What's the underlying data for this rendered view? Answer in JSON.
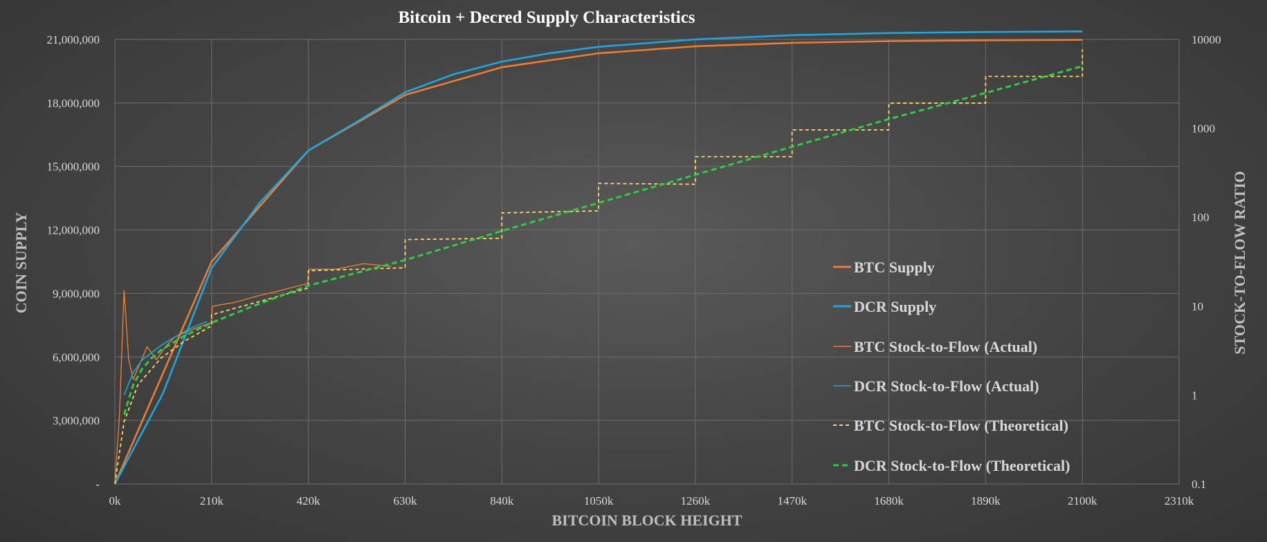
{
  "chart_data": {
    "type": "line",
    "title": "Bitcoin + Decred Supply Characteristics",
    "xlabel": "BITCOIN BLOCK HEIGHT",
    "ylabel": "COIN SUPPLY",
    "y2label": "STOCK-TO-FLOW RATIO",
    "xlim": [
      0,
      2310000
    ],
    "ylim": [
      0,
      21000000
    ],
    "y2lim": [
      0.1,
      10000
    ],
    "y2scale": "log",
    "grid": true,
    "legend_position": "center-right",
    "x_ticks": [
      "0k",
      "210k",
      "420k",
      "630k",
      "840k",
      "1050k",
      "1260k",
      "1470k",
      "1680k",
      "1890k",
      "2100k",
      "2310k"
    ],
    "y_ticks": [
      "-",
      "3,000,000",
      "6,000,000",
      "9,000,000",
      "12,000,000",
      "15,000,000",
      "18,000,000",
      "21,000,000"
    ],
    "y2_ticks": [
      "0.1",
      "1",
      "10",
      "100",
      "1000",
      "10000"
    ],
    "colors": {
      "btc_supply": "#ed7d31",
      "dcr_supply": "#1fa6e0",
      "btc_s2f_theoretical": "#ffd966",
      "dcr_s2f_theoretical": "#2ecc40"
    },
    "series": [
      {
        "name": "BTC Supply",
        "axis": "left",
        "x": [
          0,
          210000,
          420000,
          630000,
          840000,
          1050000,
          1260000,
          1470000,
          1680000,
          1890000,
          2100000
        ],
        "values": [
          0,
          10500000,
          15750000,
          18375000,
          19687500,
          20343750,
          20671875,
          20835938,
          20917969,
          20958984,
          20979492
        ]
      },
      {
        "name": "DCR Supply",
        "axis": "left",
        "x": [
          0,
          105000,
          210000,
          315000,
          420000,
          525000,
          630000,
          735000,
          840000,
          945000,
          1050000,
          1260000,
          1470000,
          1680000,
          1890000,
          2100000
        ],
        "values": [
          0,
          4300000,
          10200000,
          13300000,
          15750000,
          17100000,
          18500000,
          19350000,
          19950000,
          20350000,
          20650000,
          21000000,
          21200000,
          21300000,
          21350000,
          21380000
        ]
      },
      {
        "name": "BTC Stock-to-Flow (Actual)",
        "axis": "right",
        "x": [
          0,
          10000,
          20000,
          30000,
          40000,
          50000,
          70000,
          90000,
          110000,
          130000,
          150000,
          170000,
          190000,
          209000,
          212000,
          260000,
          310000,
          360000,
          418000,
          422000,
          480000,
          540000,
          600000
        ],
        "values": [
          0.1,
          0.6,
          15,
          2.5,
          1.5,
          2.0,
          3.5,
          2.5,
          3.5,
          4.5,
          5.0,
          5.5,
          6.0,
          6.5,
          10,
          11,
          13,
          15,
          18,
          26,
          26,
          30,
          28
        ]
      },
      {
        "name": "DCR Stock-to-Flow (Actual)",
        "axis": "right",
        "x": [
          20000,
          40000,
          60000,
          80000,
          100000,
          120000,
          140000,
          160000,
          180000,
          200000
        ],
        "values": [
          1.0,
          1.8,
          2.5,
          3.0,
          3.6,
          4.2,
          4.8,
          5.5,
          6.1,
          6.7
        ]
      },
      {
        "name": "BTC Stock-to-Flow (Theoretical)",
        "axis": "right",
        "x": [
          0,
          20000,
          50000,
          100000,
          150000,
          210000,
          210000,
          420000,
          420000,
          630000,
          630000,
          840000,
          840000,
          1050000,
          1050000,
          1260000,
          1260000,
          1470000,
          1470000,
          1680000,
          1680000,
          1890000,
          1890000,
          2100000,
          2100000
        ],
        "values": [
          0.1,
          0.5,
          1.3,
          2.6,
          4.0,
          6.0,
          8.0,
          16.0,
          25.0,
          27.0,
          56.0,
          58.0,
          112.0,
          118.0,
          240.0,
          235.0,
          480.0,
          480.0,
          960.0,
          960.0,
          1920.0,
          1920.0,
          3840.0,
          3840.0,
          7700.0
        ]
      },
      {
        "name": "DCR Stock-to-Flow (Theoretical)",
        "axis": "right",
        "x": [
          20000,
          40000,
          60000,
          80000,
          100000,
          150000,
          210000,
          300000,
          420000,
          630000,
          840000,
          1050000,
          1260000,
          1470000,
          1680000,
          1890000,
          2100000
        ],
        "values": [
          0.6,
          1.3,
          2.0,
          2.6,
          3.2,
          4.6,
          6.5,
          10,
          17,
          33,
          70,
          145,
          300,
          620,
          1270,
          2500,
          5000
        ]
      }
    ]
  }
}
